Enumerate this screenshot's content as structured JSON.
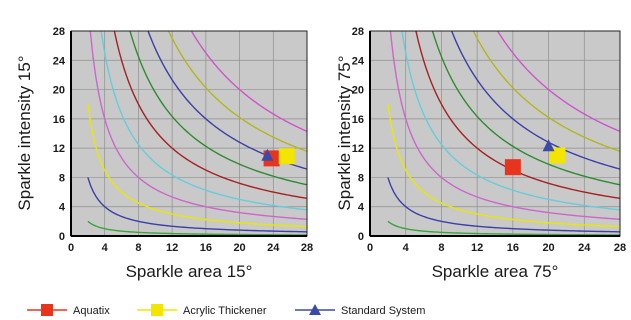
{
  "chart_data": [
    {
      "type": "scatter",
      "xlabel": "Sparkle area 15°",
      "ylabel": "Sparkle intensity 15°",
      "xlim": [
        0,
        28
      ],
      "ylim": [
        0,
        28
      ],
      "xticks": [
        0,
        4,
        8,
        12,
        16,
        20,
        24,
        28
      ],
      "yticks": [
        0,
        4,
        8,
        12,
        16,
        20,
        24,
        28
      ],
      "grid": true,
      "background_contours": [
        {
          "level": 4,
          "color": "#3aa53a"
        },
        {
          "level": 16,
          "color": "#3b3fa8"
        },
        {
          "level": 36,
          "color": "#e8e800"
        },
        {
          "level": 64,
          "color": "#cc66cc"
        },
        {
          "level": 100,
          "color": "#66ccdd"
        },
        {
          "level": 144,
          "color": "#a52020"
        },
        {
          "level": 196,
          "color": "#2e8b2e"
        },
        {
          "level": 256,
          "color": "#3b3fa8"
        },
        {
          "level": 324,
          "color": "#b5b520"
        },
        {
          "level": 400,
          "color": "#cc55cc"
        }
      ],
      "series": [
        {
          "name": "Aquatix",
          "marker": "square",
          "color": "#e8341c",
          "x": [
            23.8
          ],
          "y": [
            10.6
          ]
        },
        {
          "name": "Acrylic Thickener",
          "marker": "square",
          "color": "#f2e600",
          "x": [
            25.6
          ],
          "y": [
            10.9
          ]
        },
        {
          "name": "Standard System",
          "marker": "triangle",
          "color": "#3b4aa8",
          "x": [
            23.3
          ],
          "y": [
            11.1
          ]
        }
      ]
    },
    {
      "type": "scatter",
      "xlabel": "Sparkle area 75°",
      "ylabel": "Sparkle intensity 75°",
      "xlim": [
        0,
        28
      ],
      "ylim": [
        0,
        28
      ],
      "xticks": [
        0,
        4,
        8,
        12,
        16,
        20,
        24,
        28
      ],
      "yticks": [
        0,
        4,
        8,
        12,
        16,
        20,
        24,
        28
      ],
      "grid": true,
      "background_contours": [
        {
          "level": 4,
          "color": "#3aa53a"
        },
        {
          "level": 16,
          "color": "#3b3fa8"
        },
        {
          "level": 36,
          "color": "#e8e800"
        },
        {
          "level": 64,
          "color": "#cc66cc"
        },
        {
          "level": 100,
          "color": "#66ccdd"
        },
        {
          "level": 144,
          "color": "#a52020"
        },
        {
          "level": 196,
          "color": "#2e8b2e"
        },
        {
          "level": 256,
          "color": "#3b3fa8"
        },
        {
          "level": 324,
          "color": "#b5b520"
        },
        {
          "level": 400,
          "color": "#cc55cc"
        }
      ],
      "series": [
        {
          "name": "Aquatix",
          "marker": "square",
          "color": "#e8341c",
          "x": [
            16.0
          ],
          "y": [
            9.4
          ]
        },
        {
          "name": "Acrylic Thickener",
          "marker": "square",
          "color": "#f2e600",
          "x": [
            21.0
          ],
          "y": [
            11.0
          ]
        },
        {
          "name": "Standard System",
          "marker": "triangle",
          "color": "#3b4aa8",
          "x": [
            20.0
          ],
          "y": [
            12.4
          ]
        }
      ]
    }
  ],
  "legend": {
    "placement": "bottom",
    "items": [
      {
        "label": "Aquatix",
        "line_color": "#e8341c",
        "marker": "square",
        "color": "#e8341c"
      },
      {
        "label": "Acrylic Thickener",
        "line_color": "#f2e600",
        "marker": "square",
        "color": "#f2e600"
      },
      {
        "label": "Standard System",
        "line_color": "#3b4aa8",
        "marker": "triangle",
        "color": "#3b4aa8"
      }
    ]
  }
}
